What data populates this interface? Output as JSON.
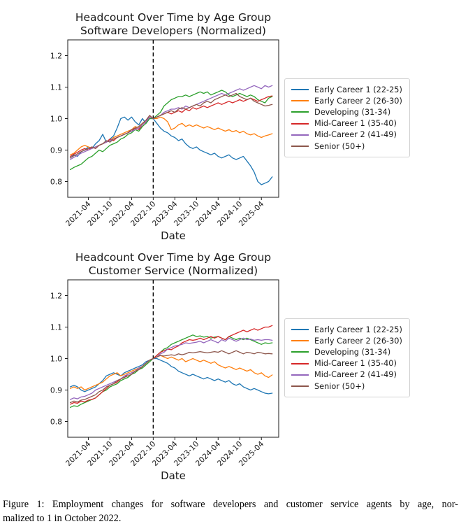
{
  "figure": {
    "caption_line1": "Figure 1: Employment changes for software developers and customer service agents by age, nor-",
    "caption_line2": "malized to 1 in October 2022."
  },
  "chart_data": [
    {
      "type": "line",
      "title": "Headcount Over Time by Age Group",
      "subtitle": "Software Developers (Normalized)",
      "xlabel": "Date",
      "ylabel": "",
      "ylim": [
        0.75,
        1.25
      ],
      "yticks": [
        0.8,
        0.9,
        1.0,
        1.1,
        1.2
      ],
      "xtick_labels": [
        "2021-04",
        "2021-10",
        "2022-04",
        "2022-10",
        "2023-04",
        "2023-10",
        "2024-04",
        "2024-10",
        "2025-04"
      ],
      "grid": false,
      "legend_position": "outside center right",
      "normalization_vline": "2022-10",
      "vline_style": "black dashed",
      "x": [
        "2020-11",
        "2020-12",
        "2021-01",
        "2021-02",
        "2021-03",
        "2021-04",
        "2021-05",
        "2021-06",
        "2021-07",
        "2021-08",
        "2021-09",
        "2021-10",
        "2021-11",
        "2021-12",
        "2022-01",
        "2022-02",
        "2022-03",
        "2022-04",
        "2022-05",
        "2022-06",
        "2022-07",
        "2022-08",
        "2022-09",
        "2022-10",
        "2022-11",
        "2022-12",
        "2023-01",
        "2023-02",
        "2023-03",
        "2023-04",
        "2023-05",
        "2023-06",
        "2023-07",
        "2023-08",
        "2023-09",
        "2023-10",
        "2023-11",
        "2023-12",
        "2024-01",
        "2024-02",
        "2024-03",
        "2024-04",
        "2024-05",
        "2024-06",
        "2024-07",
        "2024-08",
        "2024-09",
        "2024-10",
        "2024-11",
        "2024-12",
        "2025-01",
        "2025-02",
        "2025-03",
        "2025-04",
        "2025-05",
        "2025-06",
        "2025-07"
      ],
      "series": [
        {
          "name": "Early Career 1 (22-25)",
          "color": "#1f77b4",
          "values": [
            0.875,
            0.885,
            0.88,
            0.895,
            0.9,
            0.91,
            0.905,
            0.92,
            0.93,
            0.95,
            0.925,
            0.935,
            0.945,
            0.97,
            1.0,
            1.005,
            0.995,
            1.005,
            0.99,
            0.98,
            1.0,
            0.985,
            1.0,
            1.0,
            0.985,
            0.97,
            0.96,
            0.955,
            0.945,
            0.94,
            0.93,
            0.935,
            0.92,
            0.91,
            0.905,
            0.91,
            0.9,
            0.895,
            0.89,
            0.885,
            0.89,
            0.88,
            0.875,
            0.88,
            0.885,
            0.875,
            0.87,
            0.875,
            0.88,
            0.865,
            0.85,
            0.83,
            0.8,
            0.79,
            0.795,
            0.8,
            0.815
          ]
        },
        {
          "name": "Early Career 2 (26-30)",
          "color": "#ff7f0e",
          "values": [
            0.885,
            0.89,
            0.9,
            0.91,
            0.915,
            0.91,
            0.905,
            0.91,
            0.915,
            0.92,
            0.925,
            0.93,
            0.94,
            0.945,
            0.95,
            0.955,
            0.96,
            0.965,
            0.975,
            0.97,
            0.985,
            0.99,
            1.005,
            1.0,
            1.0,
            1.005,
            1.0,
            0.99,
            0.965,
            0.97,
            0.98,
            0.985,
            0.975,
            0.98,
            0.975,
            0.98,
            0.975,
            0.97,
            0.975,
            0.97,
            0.965,
            0.97,
            0.965,
            0.96,
            0.965,
            0.958,
            0.962,
            0.955,
            0.96,
            0.952,
            0.948,
            0.952,
            0.945,
            0.94,
            0.945,
            0.948,
            0.952
          ]
        },
        {
          "name": "Developing (31-34)",
          "color": "#2ca02c",
          "values": [
            0.838,
            0.845,
            0.85,
            0.855,
            0.865,
            0.875,
            0.88,
            0.89,
            0.9,
            0.895,
            0.905,
            0.915,
            0.92,
            0.925,
            0.935,
            0.94,
            0.95,
            0.955,
            0.965,
            0.96,
            0.975,
            0.985,
            1.0,
            1.0,
            1.01,
            1.02,
            1.04,
            1.05,
            1.06,
            1.065,
            1.07,
            1.07,
            1.075,
            1.07,
            1.075,
            1.08,
            1.085,
            1.08,
            1.085,
            1.075,
            1.08,
            1.085,
            1.09,
            1.085,
            1.075,
            1.07,
            1.075,
            1.08,
            1.075,
            1.07,
            1.075,
            1.07,
            1.06,
            1.055,
            1.05,
            1.065,
            1.07
          ]
        },
        {
          "name": "Mid-Career 1 (35-40)",
          "color": "#d62728",
          "values": [
            0.88,
            0.887,
            0.893,
            0.9,
            0.905,
            0.9,
            0.91,
            0.905,
            0.915,
            0.92,
            0.925,
            0.935,
            0.93,
            0.94,
            0.945,
            0.95,
            0.955,
            0.96,
            0.97,
            0.965,
            0.98,
            0.99,
            1.01,
            1.0,
            1.005,
            1.01,
            1.015,
            1.02,
            1.015,
            1.02,
            1.025,
            1.02,
            1.03,
            1.025,
            1.035,
            1.03,
            1.035,
            1.04,
            1.035,
            1.04,
            1.045,
            1.05,
            1.045,
            1.05,
            1.055,
            1.05,
            1.055,
            1.06,
            1.055,
            1.06,
            1.065,
            1.06,
            1.055,
            1.06,
            1.065,
            1.07,
            1.072
          ]
        },
        {
          "name": "Mid-Career 2 (41-49)",
          "color": "#9467bd",
          "values": [
            0.87,
            0.877,
            0.883,
            0.89,
            0.895,
            0.9,
            0.905,
            0.91,
            0.915,
            0.92,
            0.925,
            0.93,
            0.935,
            0.94,
            0.945,
            0.95,
            0.955,
            0.96,
            0.965,
            0.97,
            0.98,
            0.99,
            1.005,
            1.0,
            1.005,
            1.01,
            1.02,
            1.025,
            1.03,
            1.03,
            1.035,
            1.03,
            1.04,
            1.035,
            1.04,
            1.045,
            1.05,
            1.055,
            1.06,
            1.065,
            1.07,
            1.075,
            1.08,
            1.075,
            1.08,
            1.085,
            1.09,
            1.095,
            1.09,
            1.095,
            1.1,
            1.105,
            1.1,
            1.095,
            1.105,
            1.1,
            1.105
          ]
        },
        {
          "name": "Senior (50+)",
          "color": "#8c564b",
          "values": [
            0.875,
            0.882,
            0.888,
            0.895,
            0.9,
            0.905,
            0.91,
            0.905,
            0.915,
            0.92,
            0.93,
            0.925,
            0.935,
            0.94,
            0.945,
            0.95,
            0.955,
            0.965,
            0.97,
            0.975,
            0.985,
            0.995,
            1.01,
            1.0,
            1.005,
            1.01,
            1.015,
            1.02,
            1.025,
            1.02,
            1.03,
            1.035,
            1.03,
            1.035,
            1.04,
            1.045,
            1.04,
            1.05,
            1.055,
            1.05,
            1.06,
            1.065,
            1.07,
            1.075,
            1.07,
            1.075,
            1.08,
            1.07,
            1.065,
            1.06,
            1.065,
            1.055,
            1.05,
            1.045,
            1.04,
            1.042,
            1.045
          ]
        }
      ]
    },
    {
      "type": "line",
      "title": "Headcount Over Time by Age Group",
      "subtitle": "Customer Service (Normalized)",
      "xlabel": "Date",
      "ylabel": "",
      "ylim": [
        0.75,
        1.25
      ],
      "yticks": [
        0.8,
        0.9,
        1.0,
        1.1,
        1.2
      ],
      "xtick_labels": [
        "2021-04",
        "2021-10",
        "2022-04",
        "2022-10",
        "2023-04",
        "2023-10",
        "2024-04",
        "2024-10",
        "2025-04"
      ],
      "grid": false,
      "legend_position": "outside center right",
      "normalization_vline": "2022-10",
      "vline_style": "black dashed",
      "x": [
        "2020-11",
        "2020-12",
        "2021-01",
        "2021-02",
        "2021-03",
        "2021-04",
        "2021-05",
        "2021-06",
        "2021-07",
        "2021-08",
        "2021-09",
        "2021-10",
        "2021-11",
        "2021-12",
        "2022-01",
        "2022-02",
        "2022-03",
        "2022-04",
        "2022-05",
        "2022-06",
        "2022-07",
        "2022-08",
        "2022-09",
        "2022-10",
        "2022-11",
        "2022-12",
        "2023-01",
        "2023-02",
        "2023-03",
        "2023-04",
        "2023-05",
        "2023-06",
        "2023-07",
        "2023-08",
        "2023-09",
        "2023-10",
        "2023-11",
        "2023-12",
        "2024-01",
        "2024-02",
        "2024-03",
        "2024-04",
        "2024-05",
        "2024-06",
        "2024-07",
        "2024-08",
        "2024-09",
        "2024-10",
        "2024-11",
        "2024-12",
        "2025-01",
        "2025-02",
        "2025-03",
        "2025-04",
        "2025-05",
        "2025-06",
        "2025-07"
      ],
      "series": [
        {
          "name": "Early Career 1 (22-25)",
          "color": "#1f77b4",
          "values": [
            0.91,
            0.915,
            0.91,
            0.9,
            0.895,
            0.9,
            0.905,
            0.91,
            0.92,
            0.93,
            0.945,
            0.95,
            0.955,
            0.95,
            0.945,
            0.955,
            0.96,
            0.965,
            0.97,
            0.975,
            0.98,
            0.99,
            0.995,
            1.0,
            1.0,
            0.995,
            0.99,
            0.985,
            0.975,
            0.97,
            0.96,
            0.955,
            0.95,
            0.945,
            0.95,
            0.945,
            0.94,
            0.935,
            0.94,
            0.935,
            0.93,
            0.935,
            0.93,
            0.925,
            0.93,
            0.92,
            0.915,
            0.92,
            0.91,
            0.905,
            0.9,
            0.905,
            0.9,
            0.895,
            0.89,
            0.888,
            0.89
          ]
        },
        {
          "name": "Early Career 2 (26-30)",
          "color": "#ff7f0e",
          "values": [
            0.905,
            0.91,
            0.905,
            0.91,
            0.9,
            0.905,
            0.91,
            0.915,
            0.92,
            0.925,
            0.935,
            0.945,
            0.95,
            0.955,
            0.945,
            0.95,
            0.955,
            0.96,
            0.965,
            0.97,
            0.975,
            0.985,
            0.995,
            1.0,
            1.005,
            1.01,
            1.005,
            1.0,
            1.005,
            1.0,
            0.995,
            1.0,
            0.99,
            0.995,
            1.0,
            0.995,
            0.99,
            0.995,
            0.99,
            0.985,
            0.99,
            0.98,
            0.975,
            0.97,
            0.975,
            0.97,
            0.965,
            0.97,
            0.965,
            0.96,
            0.965,
            0.955,
            0.95,
            0.955,
            0.945,
            0.94,
            0.948
          ]
        },
        {
          "name": "Developing (31-34)",
          "color": "#2ca02c",
          "values": [
            0.845,
            0.85,
            0.848,
            0.855,
            0.86,
            0.865,
            0.87,
            0.875,
            0.885,
            0.895,
            0.9,
            0.91,
            0.915,
            0.92,
            0.93,
            0.935,
            0.94,
            0.95,
            0.955,
            0.965,
            0.97,
            0.98,
            0.99,
            1.0,
            1.01,
            1.02,
            1.03,
            1.035,
            1.045,
            1.05,
            1.055,
            1.06,
            1.065,
            1.07,
            1.075,
            1.07,
            1.072,
            1.068,
            1.07,
            1.065,
            1.068,
            1.07,
            1.065,
            1.06,
            1.07,
            1.065,
            1.06,
            1.065,
            1.06,
            1.065,
            1.06,
            1.055,
            1.05,
            1.045,
            1.05,
            1.048,
            1.05
          ]
        },
        {
          "name": "Mid-Career 1 (35-40)",
          "color": "#d62728",
          "values": [
            0.855,
            0.86,
            0.858,
            0.865,
            0.862,
            0.868,
            0.87,
            0.875,
            0.885,
            0.895,
            0.905,
            0.915,
            0.92,
            0.925,
            0.935,
            0.94,
            0.95,
            0.955,
            0.96,
            0.965,
            0.975,
            0.985,
            0.995,
            1.0,
            1.01,
            1.02,
            1.025,
            1.03,
            1.028,
            1.035,
            1.04,
            1.05,
            1.055,
            1.06,
            1.058,
            1.06,
            1.065,
            1.06,
            1.065,
            1.07,
            1.065,
            1.07,
            1.065,
            1.06,
            1.07,
            1.075,
            1.08,
            1.085,
            1.09,
            1.085,
            1.09,
            1.095,
            1.09,
            1.095,
            1.1,
            1.1,
            1.105
          ]
        },
        {
          "name": "Mid-Career 2 (41-49)",
          "color": "#9467bd",
          "values": [
            0.87,
            0.875,
            0.872,
            0.878,
            0.88,
            0.885,
            0.89,
            0.9,
            0.905,
            0.91,
            0.915,
            0.92,
            0.925,
            0.93,
            0.935,
            0.945,
            0.95,
            0.955,
            0.96,
            0.97,
            0.975,
            0.985,
            0.995,
            1.0,
            1.005,
            1.015,
            1.02,
            1.03,
            1.035,
            1.04,
            1.042,
            1.045,
            1.05,
            1.048,
            1.05,
            1.052,
            1.055,
            1.05,
            1.055,
            1.06,
            1.055,
            1.05,
            1.06,
            1.055,
            1.065,
            1.06,
            1.055,
            1.06,
            1.065,
            1.06,
            1.062,
            1.058,
            1.06,
            1.058,
            1.06,
            1.06,
            1.058
          ]
        },
        {
          "name": "Senior (50+)",
          "color": "#8c564b",
          "values": [
            0.86,
            0.865,
            0.862,
            0.868,
            0.87,
            0.875,
            0.88,
            0.885,
            0.895,
            0.9,
            0.91,
            0.915,
            0.92,
            0.93,
            0.935,
            0.94,
            0.945,
            0.95,
            0.96,
            0.965,
            0.975,
            0.985,
            0.995,
            1.0,
            1.005,
            1.01,
            1.008,
            1.01,
            1.012,
            1.01,
            1.015,
            1.012,
            1.015,
            1.02,
            1.018,
            1.02,
            1.022,
            1.02,
            1.018,
            1.02,
            1.022,
            1.02,
            1.025,
            1.02,
            1.015,
            1.02,
            1.025,
            1.02,
            1.015,
            1.02,
            1.018,
            1.015,
            1.02,
            1.018,
            1.015,
            1.016,
            1.015
          ]
        }
      ]
    }
  ]
}
